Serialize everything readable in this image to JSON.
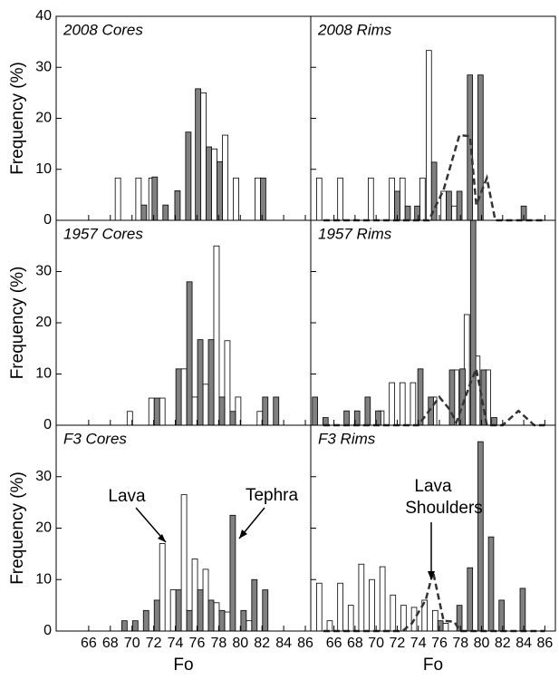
{
  "chart_data": [
    {
      "type": "bar",
      "title": "2008 Cores",
      "ylabel": "Frequency (%)",
      "xlim": [
        63,
        86.5
      ],
      "ylim": [
        0,
        40
      ],
      "yticks": [
        0,
        10,
        20,
        30,
        40
      ],
      "xticks": [
        66,
        68,
        70,
        72,
        74,
        76,
        78,
        80,
        82,
        84,
        86
      ],
      "series": [
        {
          "color": "#ffffff",
          "x": [
            68.7,
            70.6,
            71.8,
            76.6,
            77.6,
            78.6,
            79.6,
            81.6
          ],
          "values": [
            8.3,
            8.3,
            8.3,
            25,
            14,
            16.7,
            8.3,
            8.3
          ]
        },
        {
          "color": "#808080",
          "x": [
            71.1,
            72.1,
            73.1,
            74.2,
            75.2,
            76.1,
            77.1,
            78.1,
            82.1
          ],
          "values": [
            3,
            8.5,
            3,
            5.8,
            17.3,
            25.8,
            14.4,
            11.5,
            8.3
          ]
        }
      ]
    },
    {
      "type": "bar",
      "title": "2008 Rims",
      "xlim": [
        63.8,
        87
      ],
      "ylim": [
        0,
        40
      ],
      "yticks": [
        0,
        10,
        20,
        30,
        40
      ],
      "xticks": [
        66,
        68,
        70,
        72,
        74,
        76,
        78,
        80,
        82,
        84,
        86
      ],
      "series": [
        {
          "color": "#ffffff",
          "x": [
            64.6,
            66.6,
            69.5,
            71.5,
            72.5,
            74.4,
            75.0,
            76.4,
            77.4
          ],
          "values": [
            8.3,
            8.3,
            8.3,
            8.3,
            8.3,
            8.3,
            33.3,
            5.7,
            2.8
          ]
        },
        {
          "color": "#808080",
          "x": [
            72.0,
            73.0,
            73.9,
            75.5,
            76.9,
            77.9,
            78.9,
            79.9,
            84.0
          ],
          "values": [
            5.7,
            2.8,
            2.8,
            11.4,
            5.7,
            5.7,
            28.5,
            28.5,
            2.8
          ]
        }
      ],
      "line": {
        "color": "#333333",
        "x": [
          65,
          66,
          67,
          68,
          69,
          70,
          71,
          72,
          73,
          74,
          75,
          76.4,
          77.9,
          78.9,
          79.5,
          80.5,
          81.3,
          82,
          83,
          84,
          85,
          86
        ],
        "values": [
          0,
          0,
          0,
          0,
          0,
          0,
          0,
          0,
          0,
          0,
          0,
          6,
          16.7,
          16.5,
          3,
          8.3,
          0,
          0,
          0,
          0,
          0,
          0
        ]
      }
    },
    {
      "type": "bar",
      "title": "1957 Cores",
      "ylabel": "Frequency (%)",
      "xlim": [
        63,
        86.5
      ],
      "ylim": [
        0,
        40
      ],
      "yticks": [
        0,
        10,
        20,
        30
      ],
      "xticks": [
        66,
        68,
        70,
        72,
        74,
        76,
        78,
        80,
        82,
        84,
        86
      ],
      "series": [
        {
          "color": "#ffffff",
          "x": [
            69.8,
            71.8,
            72.8,
            74.8,
            75.8,
            76.8,
            77.8,
            78.8,
            79.8,
            81.8
          ],
          "values": [
            2.7,
            5.3,
            5.3,
            11,
            5.5,
            8,
            35,
            16.5,
            5.5,
            2.7
          ]
        },
        {
          "color": "#808080",
          "x": [
            72.3,
            74.3,
            75.3,
            76.3,
            77.3,
            78.3,
            79.3,
            82.3,
            83.3
          ],
          "values": [
            5.3,
            11,
            28,
            16.7,
            16.7,
            5.5,
            2.7,
            5.5,
            5.5
          ]
        }
      ]
    },
    {
      "type": "bar",
      "title": "1957 Rims",
      "xlim": [
        63.8,
        87
      ],
      "ylim": [
        0,
        40
      ],
      "yticks": [
        0,
        10,
        20,
        30
      ],
      "xticks": [
        66,
        68,
        70,
        72,
        74,
        76,
        78,
        80,
        82,
        84,
        86
      ],
      "series": [
        {
          "color": "#ffffff",
          "x": [
            70.5,
            71.5,
            72.5,
            73.5,
            75.5,
            77.6,
            78.6,
            79.6,
            80.6
          ],
          "values": [
            2.8,
            8.3,
            8.3,
            8.3,
            5.5,
            10.8,
            21.6,
            13.5,
            10.8
          ]
        },
        {
          "color": "#808080",
          "x": [
            64.2,
            65.2,
            67.2,
            68.2,
            69.2,
            70.2,
            74.2,
            75.2,
            77.2,
            78.2,
            79.2,
            80.2,
            81.2
          ],
          "values": [
            5.5,
            1.5,
            2.8,
            2.8,
            5.5,
            2.8,
            11,
            5.5,
            10.8,
            11,
            40,
            10.8,
            1.5
          ]
        }
      ],
      "line": {
        "color": "#333333",
        "x": [
          65,
          66,
          67,
          68,
          69,
          70,
          71,
          72,
          73,
          74,
          76,
          77,
          77.6,
          78.9,
          79.5,
          80.5,
          81,
          82,
          83.5,
          85,
          86
        ],
        "values": [
          0,
          0,
          0,
          0,
          0,
          0,
          0,
          0,
          0,
          0,
          5.5,
          3,
          0.5,
          8,
          11,
          0,
          0,
          0,
          2.8,
          0,
          0
        ]
      }
    },
    {
      "type": "bar",
      "title": "F3 Cores",
      "ylabel": "Frequency (%)",
      "xlabel": "Fo",
      "xlim": [
        63,
        86.5
      ],
      "ylim": [
        0,
        40
      ],
      "yticks": [
        0,
        10,
        20,
        30
      ],
      "xticks": [
        66,
        68,
        70,
        72,
        74,
        76,
        78,
        80,
        82,
        84,
        86
      ],
      "annotations": [
        "Lava",
        "Tephra"
      ],
      "series": [
        {
          "color": "#ffffff",
          "x": [
            72.8,
            73.8,
            74.8,
            75.8,
            76.8,
            77.8,
            78.8,
            80.8
          ],
          "values": [
            17,
            8,
            26.5,
            14,
            12,
            5.5,
            3.7,
            2
          ]
        },
        {
          "color": "#808080",
          "x": [
            69.3,
            70.3,
            71.3,
            72.3,
            74.3,
            75.3,
            76.3,
            77.3,
            78.3,
            79.3,
            80.3,
            81.3,
            82.3
          ],
          "values": [
            2,
            2,
            4,
            6,
            8,
            4,
            8,
            6,
            4,
            22.5,
            4,
            10,
            8
          ]
        }
      ]
    },
    {
      "type": "bar",
      "title": "F3 Rims",
      "xlabel": "Fo",
      "xlim": [
        63.8,
        87
      ],
      "ylim": [
        0,
        40
      ],
      "yticks": [
        0,
        10,
        20,
        30
      ],
      "xticks": [
        66,
        68,
        70,
        72,
        74,
        76,
        78,
        80,
        82,
        84,
        86
      ],
      "annotations": [
        "Lava",
        "Shoulders"
      ],
      "series": [
        {
          "color": "#ffffff",
          "x": [
            64.6,
            65.6,
            66.6,
            67.6,
            68.6,
            69.6,
            70.6,
            71.6,
            72.6,
            73.6,
            74.6,
            75.6,
            76.6
          ],
          "values": [
            9.3,
            2,
            9.3,
            5,
            13,
            10,
            12.5,
            7,
            5,
            4.6,
            6,
            4,
            1.5
          ]
        },
        {
          "color": "#808080",
          "x": [
            76.1,
            77.9,
            78.9,
            79.9,
            80.9,
            81.9,
            83.9
          ],
          "values": [
            2,
            5,
            12.3,
            36.8,
            18.3,
            6,
            8.3
          ]
        }
      ],
      "line": {
        "color": "#333333",
        "x": [
          65,
          66,
          67,
          68,
          69,
          70,
          71,
          72,
          72.5,
          73.4,
          74.7,
          75.4,
          76.4,
          77.4,
          78,
          79,
          80,
          81,
          82,
          83,
          84,
          85,
          86
        ],
        "values": [
          0,
          0,
          0,
          0,
          0,
          0,
          0,
          0,
          0,
          1.5,
          6,
          11.5,
          2,
          1.8,
          0,
          0,
          0,
          0,
          0,
          0,
          0,
          0,
          0
        ]
      }
    }
  ]
}
